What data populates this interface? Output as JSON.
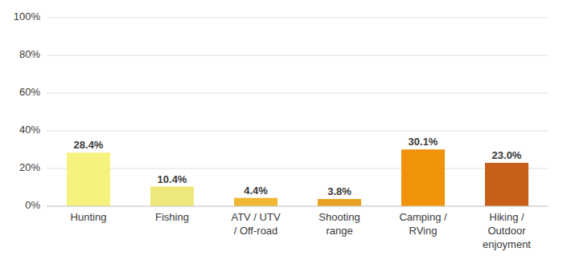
{
  "chart_data": {
    "type": "bar",
    "categories": [
      "Hunting",
      "Fishing",
      "ATV / UTV\n/ Off-road",
      "Shooting\nrange",
      "Camping /\nRVing",
      "Hiking /\nOutdoor\nenjoyment"
    ],
    "values": [
      28.4,
      10.4,
      4.4,
      3.8,
      30.1,
      23.0
    ],
    "value_labels": [
      "28.4%",
      "10.4%",
      "4.4%",
      "3.8%",
      "30.1%",
      "23.0%"
    ],
    "data_labels": true,
    "colors": [
      "#f5f27d",
      "#ede87a",
      "#f0b832",
      "#e8a020",
      "#f0920a",
      "#c85f18"
    ],
    "ylim": [
      0,
      100
    ],
    "yticks": [
      {
        "value": 0,
        "label": "0%"
      },
      {
        "value": 20,
        "label": "20%"
      },
      {
        "value": 40,
        "label": "40%"
      },
      {
        "value": 60,
        "label": "60%"
      },
      {
        "value": 80,
        "label": "80%"
      },
      {
        "value": 100,
        "label": "100%"
      }
    ],
    "grid": true
  }
}
